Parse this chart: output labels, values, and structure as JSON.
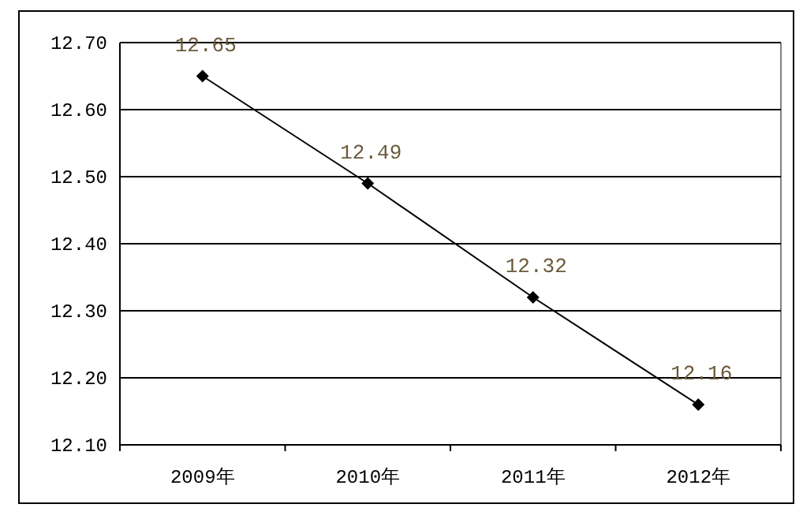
{
  "chart_data": {
    "type": "line",
    "categories": [
      "2009年",
      "2010年",
      "2011年",
      "2012年"
    ],
    "values": [
      12.65,
      12.49,
      12.32,
      12.16
    ],
    "color": "#000000",
    "marker": "diamond",
    "line_style": "solid",
    "data_labels": true,
    "grid": "y",
    "ylim": [
      12.1,
      12.7
    ],
    "yticks": [
      {
        "value": 12.1,
        "label": "12.10"
      },
      {
        "value": 12.2,
        "label": "12.20"
      },
      {
        "value": 12.3,
        "label": "12.30"
      },
      {
        "value": 12.4,
        "label": "12.40"
      },
      {
        "value": 12.5,
        "label": "12.50"
      },
      {
        "value": 12.6,
        "label": "12.60"
      },
      {
        "value": 12.7,
        "label": "12.70"
      }
    ]
  }
}
